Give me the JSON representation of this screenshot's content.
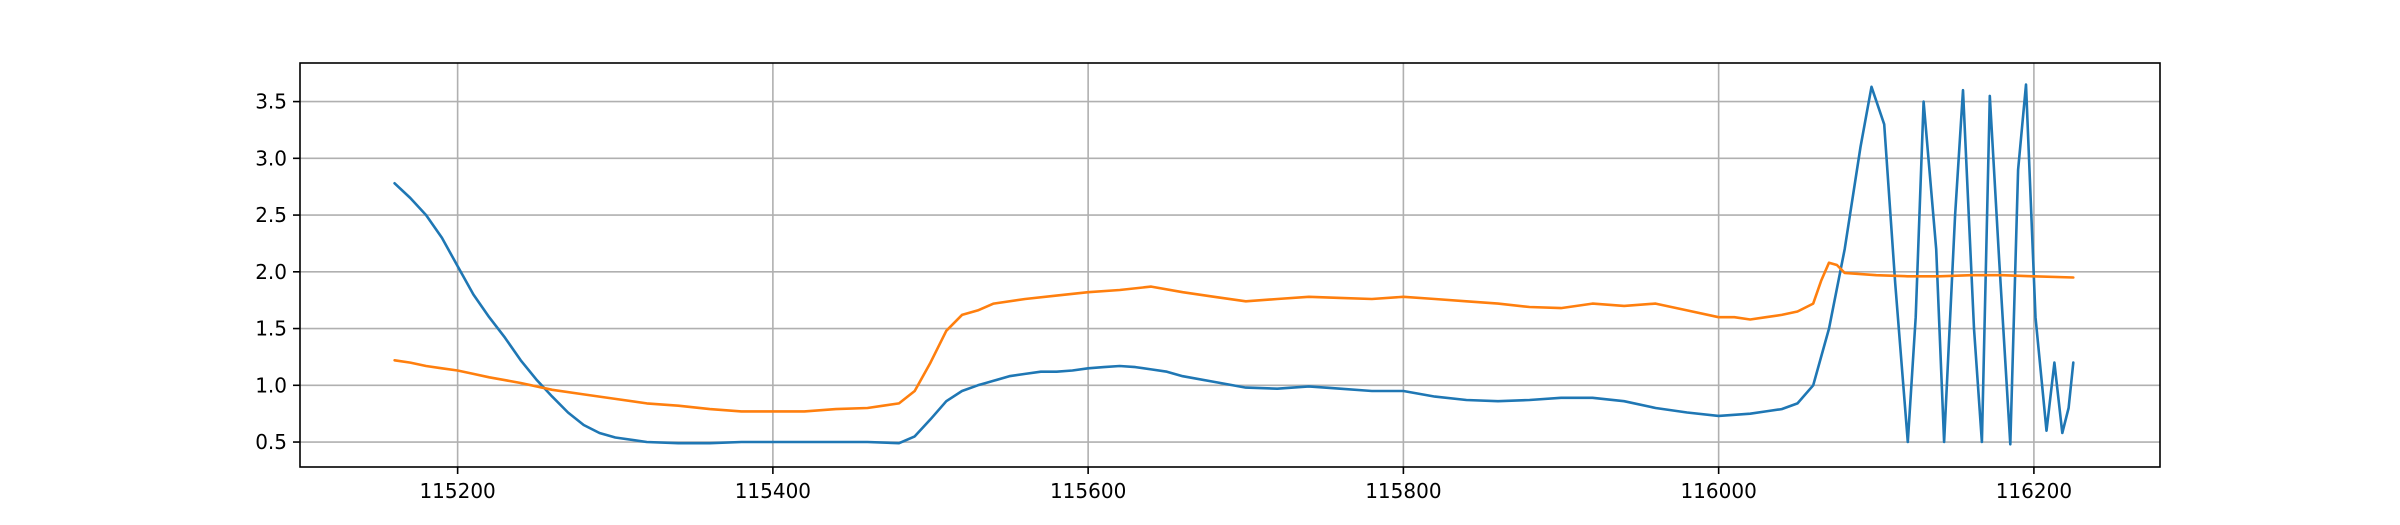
{
  "chart_data": {
    "type": "line",
    "title": "",
    "xlabel": "",
    "ylabel": "",
    "xlim": [
      115100,
      116280
    ],
    "ylim": [
      0.28,
      3.84
    ],
    "grid": true,
    "legend": "none",
    "x_ticks": [
      115200,
      115400,
      115600,
      115800,
      116000,
      116200
    ],
    "x_tick_labels": [
      "115200",
      "115400",
      "115600",
      "115800",
      "116000",
      "116200"
    ],
    "y_ticks": [
      0.5,
      1.0,
      1.5,
      2.0,
      2.5,
      3.0,
      3.5
    ],
    "y_tick_labels": [
      "0.5",
      "1.0",
      "1.5",
      "2.0",
      "2.5",
      "3.0",
      "3.5"
    ],
    "series": [
      {
        "color": "#1f77b4",
        "x": [
          115160,
          115170,
          115180,
          115190,
          115200,
          115210,
          115220,
          115230,
          115240,
          115250,
          115260,
          115270,
          115280,
          115290,
          115300,
          115320,
          115340,
          115360,
          115380,
          115400,
          115420,
          115440,
          115460,
          115480,
          115490,
          115500,
          115510,
          115520,
          115530,
          115540,
          115550,
          115560,
          115570,
          115580,
          115590,
          115600,
          115610,
          115620,
          115630,
          115640,
          115650,
          115660,
          115680,
          115700,
          115720,
          115740,
          115760,
          115780,
          115800,
          115820,
          115840,
          115860,
          115880,
          115900,
          115920,
          115940,
          115960,
          115980,
          116000,
          116010,
          116020,
          116030,
          116040,
          116050,
          116060,
          116070,
          116080,
          116090,
          116097,
          116105,
          116112,
          116120,
          116125,
          116130,
          116138,
          116143,
          116150,
          116155,
          116162,
          116167,
          116172,
          116178,
          116185,
          116190,
          116195,
          116201,
          116208,
          116213,
          116218,
          116222,
          116225
        ],
        "y": [
          2.78,
          2.65,
          2.5,
          2.3,
          2.05,
          1.8,
          1.6,
          1.42,
          1.22,
          1.05,
          0.9,
          0.76,
          0.65,
          0.58,
          0.54,
          0.5,
          0.49,
          0.49,
          0.5,
          0.5,
          0.5,
          0.5,
          0.5,
          0.49,
          0.55,
          0.7,
          0.86,
          0.95,
          1.0,
          1.04,
          1.08,
          1.1,
          1.12,
          1.12,
          1.13,
          1.15,
          1.16,
          1.17,
          1.16,
          1.14,
          1.12,
          1.08,
          1.03,
          0.98,
          0.97,
          0.99,
          0.97,
          0.95,
          0.95,
          0.9,
          0.87,
          0.86,
          0.87,
          0.89,
          0.89,
          0.86,
          0.8,
          0.76,
          0.73,
          0.74,
          0.75,
          0.77,
          0.79,
          0.84,
          1.0,
          1.5,
          2.2,
          3.1,
          3.63,
          3.3,
          1.9,
          0.5,
          1.6,
          3.5,
          2.2,
          0.5,
          2.5,
          3.6,
          1.5,
          0.5,
          3.55,
          2.1,
          0.48,
          2.9,
          3.65,
          1.6,
          0.6,
          1.2,
          0.58,
          0.8,
          1.2
        ]
      },
      {
        "color": "#ff7f0e",
        "x": [
          115160,
          115170,
          115180,
          115190,
          115200,
          115210,
          115220,
          115240,
          115260,
          115280,
          115300,
          115320,
          115340,
          115360,
          115380,
          115400,
          115420,
          115440,
          115460,
          115470,
          115480,
          115490,
          115500,
          115510,
          115520,
          115530,
          115540,
          115560,
          115580,
          115600,
          115620,
          115640,
          115660,
          115680,
          115700,
          115720,
          115740,
          115760,
          115780,
          115800,
          115820,
          115840,
          115860,
          115880,
          115900,
          115920,
          115940,
          115960,
          115980,
          116000,
          116010,
          116020,
          116030,
          116040,
          116050,
          116060,
          116065,
          116070,
          116075,
          116080,
          116100,
          116120,
          116140,
          116160,
          116180,
          116200,
          116225
        ],
        "y": [
          1.22,
          1.2,
          1.17,
          1.15,
          1.13,
          1.1,
          1.07,
          1.02,
          0.96,
          0.92,
          0.88,
          0.84,
          0.82,
          0.79,
          0.77,
          0.77,
          0.77,
          0.79,
          0.8,
          0.82,
          0.84,
          0.95,
          1.2,
          1.48,
          1.62,
          1.66,
          1.72,
          1.76,
          1.79,
          1.82,
          1.84,
          1.87,
          1.82,
          1.78,
          1.74,
          1.76,
          1.78,
          1.77,
          1.76,
          1.78,
          1.76,
          1.74,
          1.72,
          1.69,
          1.68,
          1.72,
          1.7,
          1.72,
          1.66,
          1.6,
          1.6,
          1.58,
          1.6,
          1.62,
          1.65,
          1.72,
          1.92,
          2.08,
          2.06,
          1.99,
          1.97,
          1.96,
          1.96,
          1.97,
          1.97,
          1.96,
          1.95
        ]
      }
    ]
  }
}
